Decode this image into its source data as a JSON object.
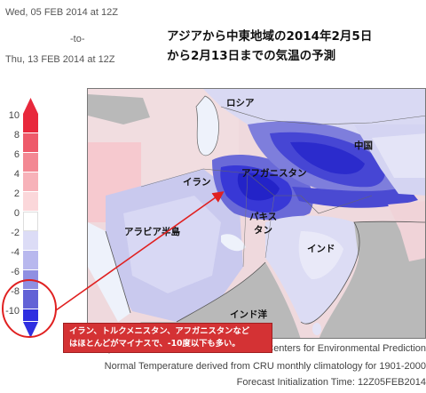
{
  "header": {
    "date_start": "Wed, 05 FEB 2014 at 12Z",
    "to": "-to-",
    "date_end": "Thu, 13 FEB 2014 at 12Z",
    "headline_line1": "アジアから中東地域の2014年2月5日",
    "headline_line2": "から2月13日までの気温の予測"
  },
  "scale": {
    "ticks": [
      "10",
      "8",
      "6",
      "4",
      "2",
      "0",
      "-2",
      "-4",
      "-6",
      "-8",
      "-10"
    ],
    "colors": {
      "warm": [
        "#e8283c",
        "#ee5a6a",
        "#f38893",
        "#f7b2b9",
        "#fbd7da"
      ],
      "neutral": "#ffffff",
      "cool": [
        "#dcdcf6",
        "#b8b8ee",
        "#8f8fe2",
        "#6262d6",
        "#2f2fe0"
      ]
    }
  },
  "map_labels": {
    "russia": "ロシア",
    "china": "中国",
    "afghanistan": "アフガニスタン",
    "iran": "イラン",
    "pakistan_1": "パキス",
    "pakistan_2": "タン",
    "arabia": "アラビア半島",
    "india": "インド",
    "indian_ocean": "インド洋"
  },
  "callout": {
    "line1": "イラン、トルクメニスタン、アフガニスタンなど",
    "line2": "はほとんどがマイナスで、-10度以下も多い。"
  },
  "credits": {
    "line1": "Temperature forecasts from the National Centers for Environmental Prediction",
    "line2": "Normal Temperature derived from CRU monthly climatology for 1901-2000",
    "line3": "Forecast Initialization Time: 12Z05FEB2014"
  },
  "colors": {
    "highlight_red": "#e02020",
    "land_gray": "#b9b9b9",
    "water_blue": "#eef2fb"
  }
}
